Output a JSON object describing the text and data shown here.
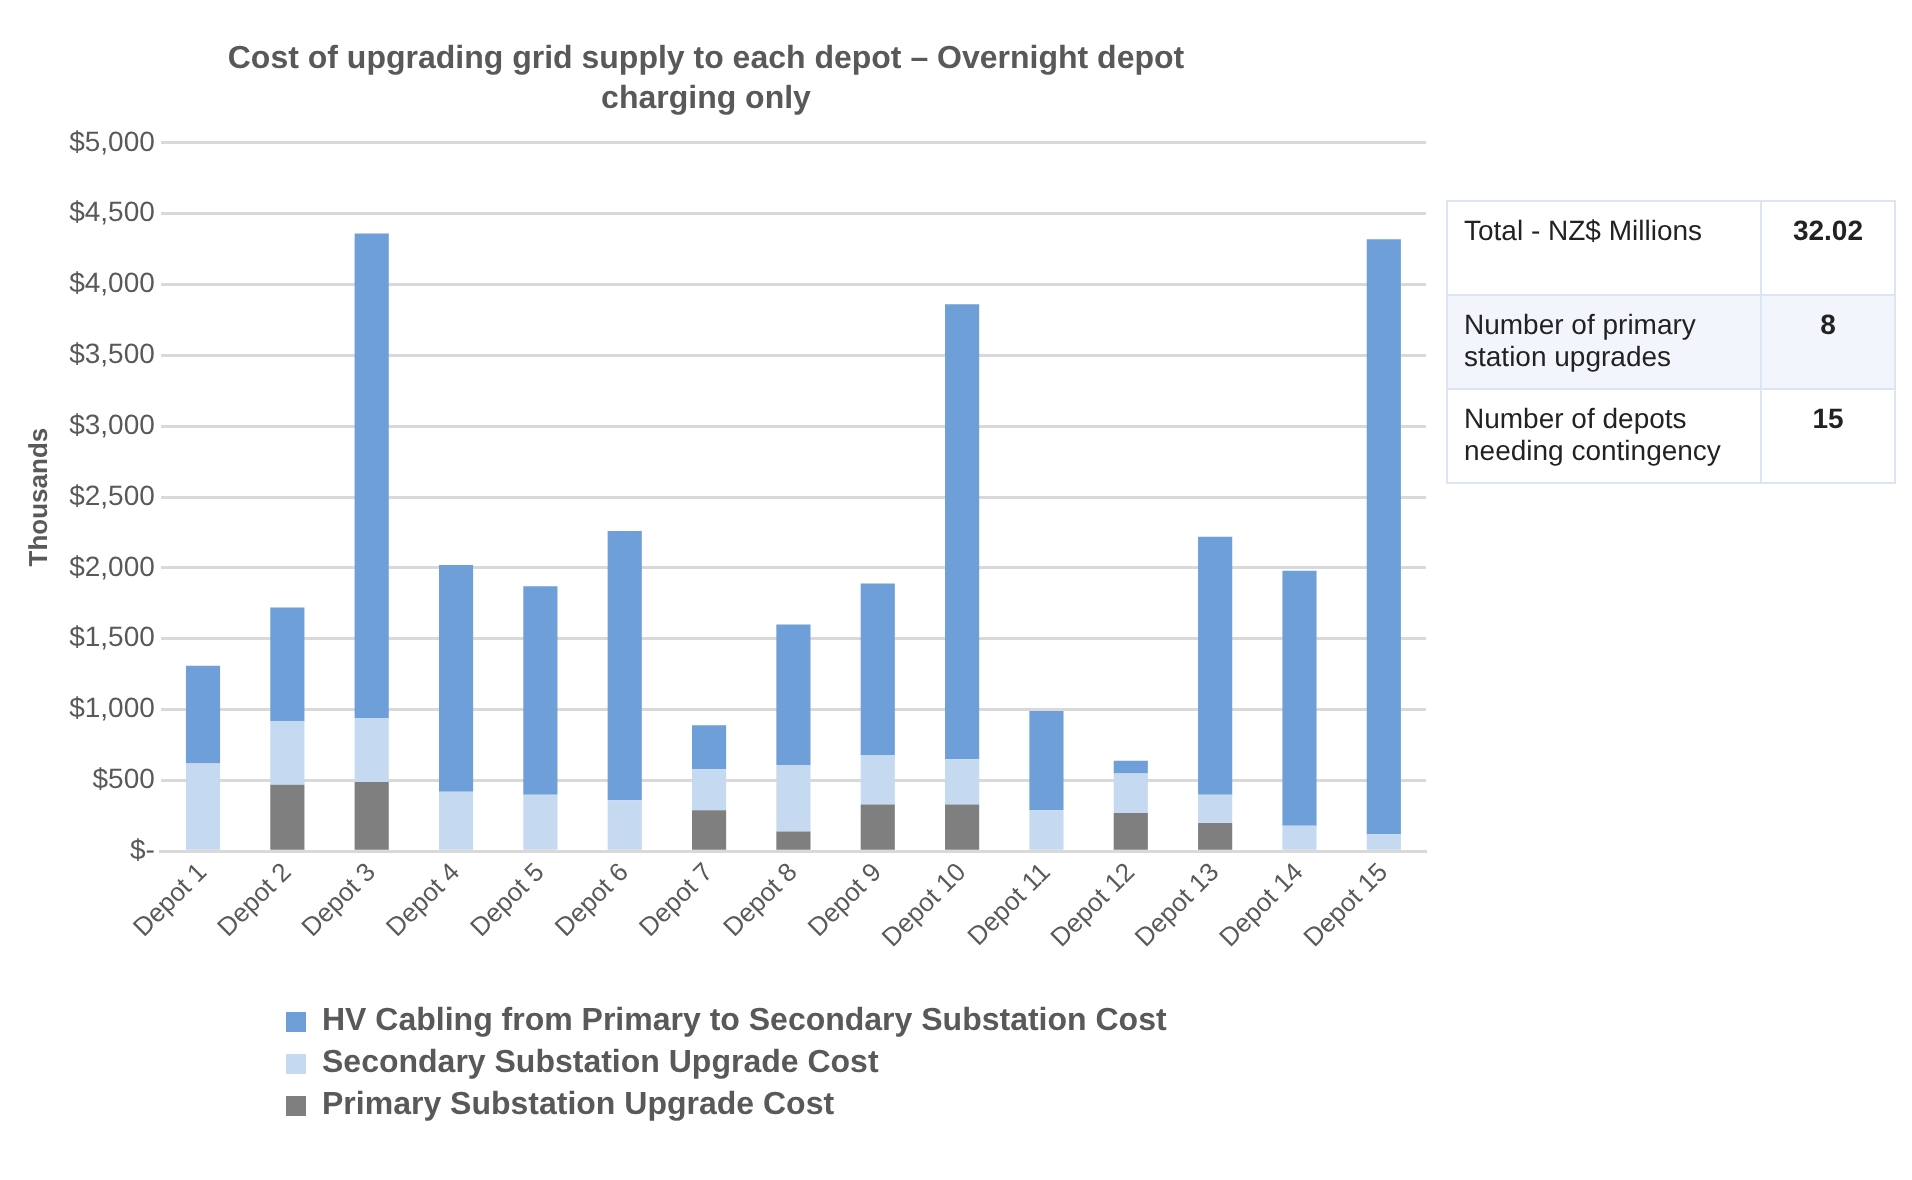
{
  "chart_data": {
    "type": "bar",
    "title": "Cost of upgrading grid supply to each depot – Overnight depot charging only",
    "ylabel": "Thousands",
    "categories": [
      "Depot 1",
      "Depot 2",
      "Depot 3",
      "Depot 4",
      "Depot 5",
      "Depot 6",
      "Depot 7",
      "Depot 8",
      "Depot 9",
      "Depot 10",
      "Depot 11",
      "Depot 12",
      "Depot 13",
      "Depot 14",
      "Depot 15"
    ],
    "stacked": true,
    "series": [
      {
        "name": "Primary Substation Upgrade Cost",
        "color": "#7f7f7f",
        "values": [
          0,
          470,
          490,
          0,
          0,
          0,
          290,
          140,
          330,
          330,
          0,
          270,
          200,
          0,
          0
        ]
      },
      {
        "name": "Secondary Substation Upgrade Cost",
        "color": "#c5d9f1",
        "values": [
          620,
          450,
          450,
          420,
          400,
          360,
          290,
          470,
          350,
          320,
          290,
          280,
          200,
          180,
          120
        ]
      },
      {
        "name": "HV Cabling from Primary to Secondary Substation Cost",
        "color": "#6f9fd8",
        "values": [
          690,
          800,
          3420,
          1600,
          1470,
          1900,
          310,
          990,
          1210,
          3210,
          700,
          90,
          1820,
          1800,
          4200
        ]
      }
    ],
    "ylim": [
      0,
      5000
    ],
    "yticks": [
      {
        "value": 0,
        "label": "$-"
      },
      {
        "value": 500,
        "label": "$500"
      },
      {
        "value": 1000,
        "label": "$1,000"
      },
      {
        "value": 1500,
        "label": "$1,500"
      },
      {
        "value": 2000,
        "label": "$2,000"
      },
      {
        "value": 2500,
        "label": "$2,500"
      },
      {
        "value": 3000,
        "label": "$3,000"
      },
      {
        "value": 3500,
        "label": "$3,500"
      },
      {
        "value": 4000,
        "label": "$4,000"
      },
      {
        "value": 4500,
        "label": "$4,500"
      },
      {
        "value": 5000,
        "label": "$5,000"
      }
    ],
    "grid": "y",
    "legend": "bottom",
    "annotations": [
      "Total - NZ$ Millions",
      "32.02",
      "Number of primary station upgrades",
      "8",
      "Number of depots needing contingency",
      "15"
    ]
  }
}
